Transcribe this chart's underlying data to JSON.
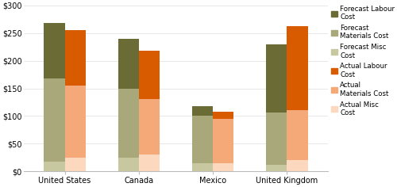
{
  "categories": [
    "United States",
    "Canada",
    "Mexico",
    "United Kingdom"
  ],
  "forecast": {
    "misc": [
      18,
      25,
      15,
      12
    ],
    "materials": [
      150,
      125,
      85,
      95
    ],
    "labour": [
      100,
      90,
      18,
      123
    ]
  },
  "actual": {
    "misc": [
      25,
      30,
      15,
      20
    ],
    "materials": [
      130,
      100,
      80,
      90
    ],
    "labour": [
      100,
      88,
      13,
      152
    ]
  },
  "colors": {
    "forecast_labour": "#6b6b35",
    "forecast_materials": "#a8a87a",
    "forecast_misc": "#c8c8a0",
    "actual_labour": "#d95b00",
    "actual_materials": "#f5a878",
    "actual_misc": "#fbd8be"
  },
  "ylabel_ticks": [
    "$0",
    "$50",
    "$100",
    "$150",
    "$200",
    "$250",
    "$300"
  ],
  "ylim": [
    0,
    300
  ],
  "background_color": "#ffffff",
  "bar_width": 0.28,
  "figsize": [
    5.0,
    2.36
  ],
  "dpi": 100
}
